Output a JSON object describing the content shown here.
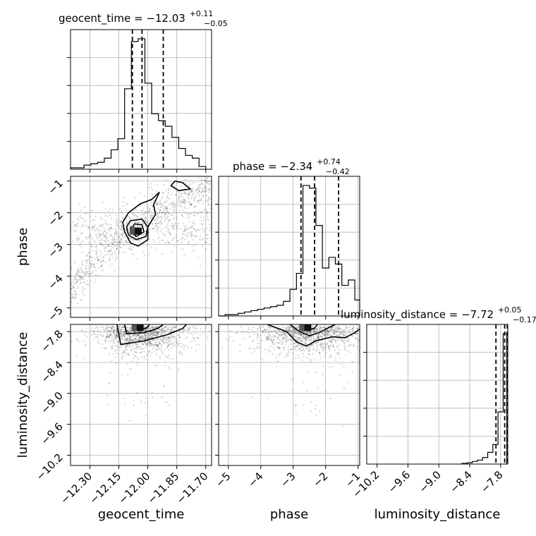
{
  "chart_data": [
    {
      "type": "histogram",
      "panel": "geocent_time",
      "title_param": "geocent_time",
      "title_median": "−12.03",
      "title_plus": "+0.11",
      "title_minus": "−0.05",
      "xlim": [
        -12.4,
        -11.67
      ],
      "quantiles": [
        -12.08,
        -12.03,
        -11.92
      ],
      "bin_edges": [
        -12.4,
        -12.365,
        -12.33,
        -12.295,
        -12.26,
        -12.225,
        -12.19,
        -12.155,
        -12.12,
        -12.085,
        -12.05,
        -12.015,
        -11.98,
        -11.945,
        -11.91,
        -11.875,
        -11.84,
        -11.805,
        -11.77,
        -11.735,
        -11.7
      ],
      "counts": [
        1,
        1,
        3,
        4,
        5,
        8,
        14,
        22,
        58,
        92,
        94,
        62,
        40,
        35,
        31,
        23,
        15,
        10,
        8,
        2
      ]
    },
    {
      "type": "histogram",
      "panel": "phase",
      "title_param": "phase",
      "title_median": "−2.34",
      "title_plus": "+0.74",
      "title_minus": "−0.42",
      "xlim": [
        -5.3,
        -0.95
      ],
      "quantiles": [
        -2.76,
        -2.34,
        -1.6
      ],
      "bin_edges": [
        -5.3,
        -5.1,
        -4.9,
        -4.7,
        -4.5,
        -4.3,
        -4.1,
        -3.9,
        -3.7,
        -3.5,
        -3.3,
        -3.1,
        -2.9,
        -2.7,
        -2.5,
        -2.3,
        -2.1,
        -1.9,
        -1.7,
        -1.5,
        -1.3,
        -1.1,
        -0.95
      ],
      "counts": [
        0,
        1,
        1,
        2,
        3,
        4,
        5,
        6,
        7,
        8,
        11,
        20,
        32,
        98,
        96,
        68,
        36,
        44,
        39,
        23,
        27,
        12
      ]
    },
    {
      "type": "histogram",
      "panel": "luminosity_distance",
      "title_param": "luminosity_distance",
      "title_median": "−7.72",
      "title_plus": "+0.05",
      "title_minus": "−0.17",
      "xlim": [
        -10.4,
        -7.66
      ],
      "quantiles": [
        -7.89,
        -7.72,
        -7.67
      ],
      "bin_edges": [
        -8.55,
        -8.45,
        -8.35,
        -8.25,
        -8.15,
        -8.05,
        -7.95,
        -7.85,
        -7.75,
        -7.68
      ],
      "counts": [
        0.5,
        1,
        2,
        3,
        5,
        9,
        15,
        40,
        100
      ]
    },
    {
      "type": "scatter",
      "panel": "phase_vs_geocent_time",
      "xlabel": "",
      "ylabel": "phase",
      "xlim": [
        -12.4,
        -11.67
      ],
      "ylim": [
        -5.3,
        -0.85
      ],
      "contours": [
        [
          [
            -12.1,
            -2.0
          ],
          [
            -12.04,
            -1.72
          ],
          [
            -11.98,
            -1.58
          ],
          [
            -11.94,
            -1.35
          ],
          [
            -11.97,
            -1.75
          ],
          [
            -11.96,
            -2.05
          ],
          [
            -12.0,
            -2.45
          ],
          [
            -12.0,
            -2.85
          ],
          [
            -12.05,
            -3.05
          ],
          [
            -12.09,
            -2.95
          ],
          [
            -12.12,
            -2.6
          ],
          [
            -12.13,
            -2.3
          ],
          [
            -12.1,
            -2.0
          ]
        ],
        [
          [
            -12.09,
            -2.25
          ],
          [
            -12.03,
            -2.2
          ],
          [
            -12.0,
            -2.45
          ],
          [
            -12.01,
            -2.75
          ],
          [
            -12.06,
            -2.85
          ],
          [
            -12.1,
            -2.7
          ],
          [
            -12.11,
            -2.45
          ],
          [
            -12.09,
            -2.25
          ]
        ],
        [
          [
            -12.07,
            -2.35
          ],
          [
            -12.03,
            -2.38
          ],
          [
            -12.02,
            -2.6
          ],
          [
            -12.06,
            -2.75
          ],
          [
            -12.09,
            -2.6
          ],
          [
            -12.07,
            -2.35
          ]
        ],
        [
          [
            -11.86,
            -1.0
          ],
          [
            -11.82,
            -1.05
          ],
          [
            -11.78,
            -1.25
          ],
          [
            -11.84,
            -1.3
          ],
          [
            -11.88,
            -1.15
          ],
          [
            -11.86,
            -1.0
          ]
        ]
      ],
      "cloud_axis": [
        [
          -12.4,
          -4.8
        ],
        [
          -12.2,
          -3.6
        ],
        [
          -12.08,
          -2.6
        ],
        [
          -11.95,
          -1.85
        ],
        [
          -11.8,
          -1.35
        ],
        [
          -11.67,
          -1.1
        ]
      ],
      "peak": [
        -12.05,
        -2.58
      ]
    },
    {
      "type": "scatter",
      "panel": "luminosity_distance_vs_geocent_time",
      "xlabel": "geocent_time",
      "ylabel": "luminosity_distance",
      "xlim": [
        -12.4,
        -11.67
      ],
      "ylim": [
        -10.4,
        -7.66
      ],
      "xticks": [
        "−12.30",
        "−12.15",
        "−12.00",
        "−11.85",
        "−11.70"
      ],
      "xtick_values": [
        -12.3,
        -12.15,
        -12.0,
        -11.85,
        -11.7
      ],
      "contours": [
        [
          [
            -12.16,
            -7.66
          ],
          [
            -12.14,
            -8.05
          ],
          [
            -12.02,
            -7.98
          ],
          [
            -11.9,
            -7.86
          ],
          [
            -11.82,
            -7.74
          ],
          [
            -11.8,
            -7.66
          ]
        ],
        [
          [
            -12.12,
            -7.66
          ],
          [
            -12.11,
            -7.84
          ],
          [
            -12.02,
            -7.82
          ],
          [
            -11.95,
            -7.74
          ],
          [
            -11.92,
            -7.66
          ]
        ],
        [
          [
            -12.07,
            -7.66
          ],
          [
            -12.06,
            -7.74
          ],
          [
            -12.01,
            -7.74
          ],
          [
            -11.99,
            -7.66
          ]
        ]
      ],
      "peak": [
        -12.04,
        -7.72
      ]
    },
    {
      "type": "scatter",
      "panel": "luminosity_distance_vs_phase",
      "xlabel": "phase",
      "ylabel": "",
      "xlim": [
        -5.3,
        -0.95
      ],
      "ylim": [
        -10.4,
        -7.66
      ],
      "xticks": [
        "−5",
        "−4",
        "−3",
        "−2",
        "−1"
      ],
      "xtick_values": [
        -5,
        -4,
        -3,
        -2,
        -1
      ],
      "contours": [
        [
          [
            -3.8,
            -7.66
          ],
          [
            -3.2,
            -7.8
          ],
          [
            -2.9,
            -8.0
          ],
          [
            -2.6,
            -8.08
          ],
          [
            -2.3,
            -7.98
          ],
          [
            -1.8,
            -7.9
          ],
          [
            -1.4,
            -7.92
          ],
          [
            -1.1,
            -7.82
          ],
          [
            -0.95,
            -7.75
          ]
        ],
        [
          [
            -3.1,
            -7.66
          ],
          [
            -2.8,
            -7.8
          ],
          [
            -2.5,
            -7.88
          ],
          [
            -2.2,
            -7.82
          ],
          [
            -1.9,
            -7.72
          ],
          [
            -1.7,
            -7.66
          ]
        ],
        [
          [
            -2.75,
            -7.66
          ],
          [
            -2.6,
            -7.76
          ],
          [
            -2.35,
            -7.74
          ],
          [
            -2.25,
            -7.66
          ]
        ]
      ],
      "peak": [
        -2.55,
        -7.72
      ]
    }
  ],
  "axes": {
    "geocent_time_yticks_phase": [
      "−1",
      "−2",
      "−3",
      "−4",
      "−5"
    ],
    "phase_ytick_values": [
      -1,
      -2,
      -3,
      -4,
      -5
    ],
    "ld_yticks": [
      "−7.8",
      "−8.4",
      "−9.0",
      "−9.6",
      "−10.2"
    ],
    "ld_ytick_values": [
      -7.8,
      -8.4,
      -9.0,
      -9.6,
      -10.2
    ],
    "ld_diag_xticks": [
      "−10.2",
      "−9.6",
      "−9.0",
      "−8.4",
      "−7.8"
    ],
    "ld_diag_xtick_values": [
      -10.2,
      -9.6,
      -9.0,
      -8.4,
      -7.8
    ],
    "bottom_labels": [
      "geocent_time",
      "phase",
      "luminosity_distance"
    ],
    "left_labels": [
      "phase",
      "luminosity_distance"
    ]
  }
}
